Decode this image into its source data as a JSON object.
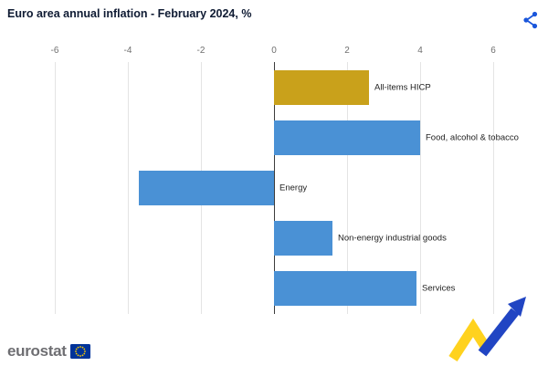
{
  "header": {
    "title": "Euro area annual inflation - February 2024, %"
  },
  "toolbar": {
    "share_label": "Share"
  },
  "chart_data": {
    "type": "bar",
    "orientation": "horizontal",
    "title": "Euro area annual inflation - February 2024, %",
    "categories": [
      "All-items HICP",
      "Food, alcohol & tobacco",
      "Energy",
      "Non-energy industrial goods",
      "Services"
    ],
    "values": [
      2.6,
      4.0,
      -3.7,
      1.6,
      3.9
    ],
    "bar_colors": [
      "#c9a11b",
      "#4a91d5",
      "#4a91d5",
      "#4a91d5",
      "#4a91d5"
    ],
    "xlim": [
      -6,
      6
    ],
    "ticks": [
      -6,
      -4,
      -2,
      0,
      2,
      4,
      6
    ],
    "xlabel": "",
    "ylabel": "",
    "grid": true,
    "legend": "none",
    "label_position": "right-of-bar-end-or-zero-line"
  },
  "colors": {
    "accent_gold": "#c9a11b",
    "accent_blue": "#4a91d5",
    "share_icon_blue": "#1a56db",
    "eu_flag_blue": "#003399",
    "eu_flag_stars": "#ffcc00",
    "zero_line": "#3c3c3c",
    "gridline": "#e4e4e4"
  },
  "footer": {
    "brand": "eurostat"
  }
}
